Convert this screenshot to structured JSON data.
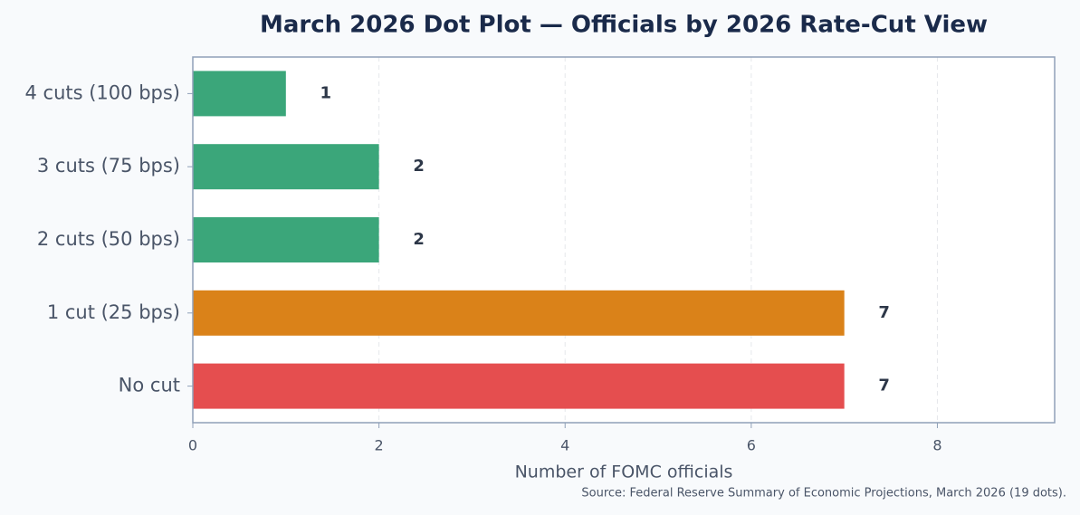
{
  "chart_data": {
    "type": "hbar",
    "title": "March 2026 Dot Plot — Officials by 2026 Rate-Cut View",
    "categories": [
      "4 cuts (100 bps)",
      "3 cuts (75 bps)",
      "2 cuts (50 bps)",
      "1 cut (25 bps)",
      "No cut"
    ],
    "values": [
      1,
      2,
      2,
      7,
      7
    ],
    "colors": [
      "#3ba67a",
      "#3ba67a",
      "#3ba67a",
      "#da8219",
      "#e54e4f"
    ],
    "xlabel": "Number of FOMC officials",
    "xlim": [
      0,
      9.26
    ],
    "xticks": [
      0,
      2,
      4,
      6,
      8
    ],
    "grid": true,
    "source": "Source: Federal Reserve Summary of Economic Projections, March 2026 (19 dots)."
  }
}
